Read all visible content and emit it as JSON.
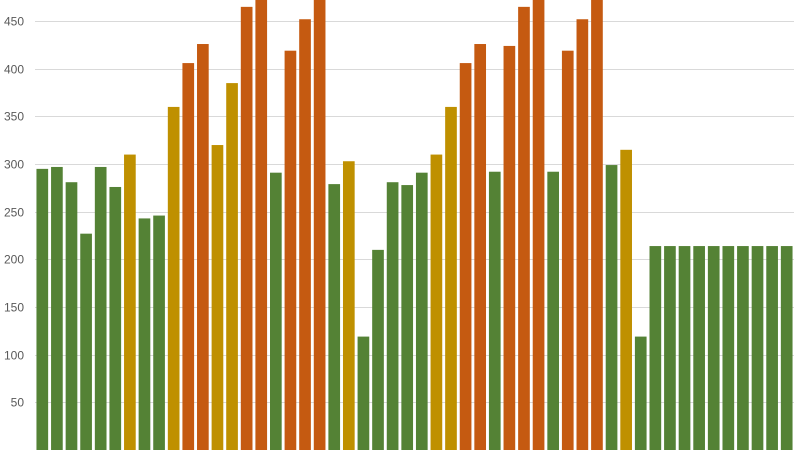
{
  "chart_data": {
    "type": "bar",
    "title": "",
    "xlabel": "",
    "ylabel": "",
    "ylim": [
      0,
      475
    ],
    "grid": true,
    "yticks": [
      50,
      100,
      150,
      200,
      250,
      300,
      350,
      400,
      450
    ],
    "ytick_labels": [
      "50",
      "100",
      "150",
      "200",
      "250",
      "300",
      "350",
      "400",
      "450"
    ],
    "colors": {
      "green": "#548235",
      "gold": "#bf9000",
      "orange": "#c55a11",
      "grid": "#d9d9d9",
      "tick_text": "#595959"
    },
    "values": [
      295,
      297,
      281,
      227,
      297,
      276,
      310,
      243,
      246,
      360,
      406,
      426,
      320,
      385,
      465,
      476,
      291,
      419,
      452,
      480,
      279,
      303,
      119,
      210,
      281,
      278,
      291,
      310,
      360,
      406,
      426,
      292,
      424,
      465,
      476,
      292,
      419,
      452,
      480,
      299,
      315,
      119,
      214,
      214,
      214,
      214,
      214,
      214,
      214,
      214,
      214,
      214
    ],
    "bar_colors": [
      "green",
      "green",
      "green",
      "green",
      "green",
      "green",
      "gold",
      "green",
      "green",
      "gold",
      "orange",
      "orange",
      "gold",
      "gold",
      "orange",
      "orange",
      "green",
      "orange",
      "orange",
      "orange",
      "green",
      "gold",
      "green",
      "green",
      "green",
      "green",
      "green",
      "gold",
      "gold",
      "orange",
      "orange",
      "green",
      "orange",
      "orange",
      "orange",
      "green",
      "orange",
      "orange",
      "orange",
      "green",
      "gold",
      "green",
      "green",
      "green",
      "green",
      "green",
      "green",
      "green",
      "green",
      "green",
      "green",
      "green"
    ]
  }
}
